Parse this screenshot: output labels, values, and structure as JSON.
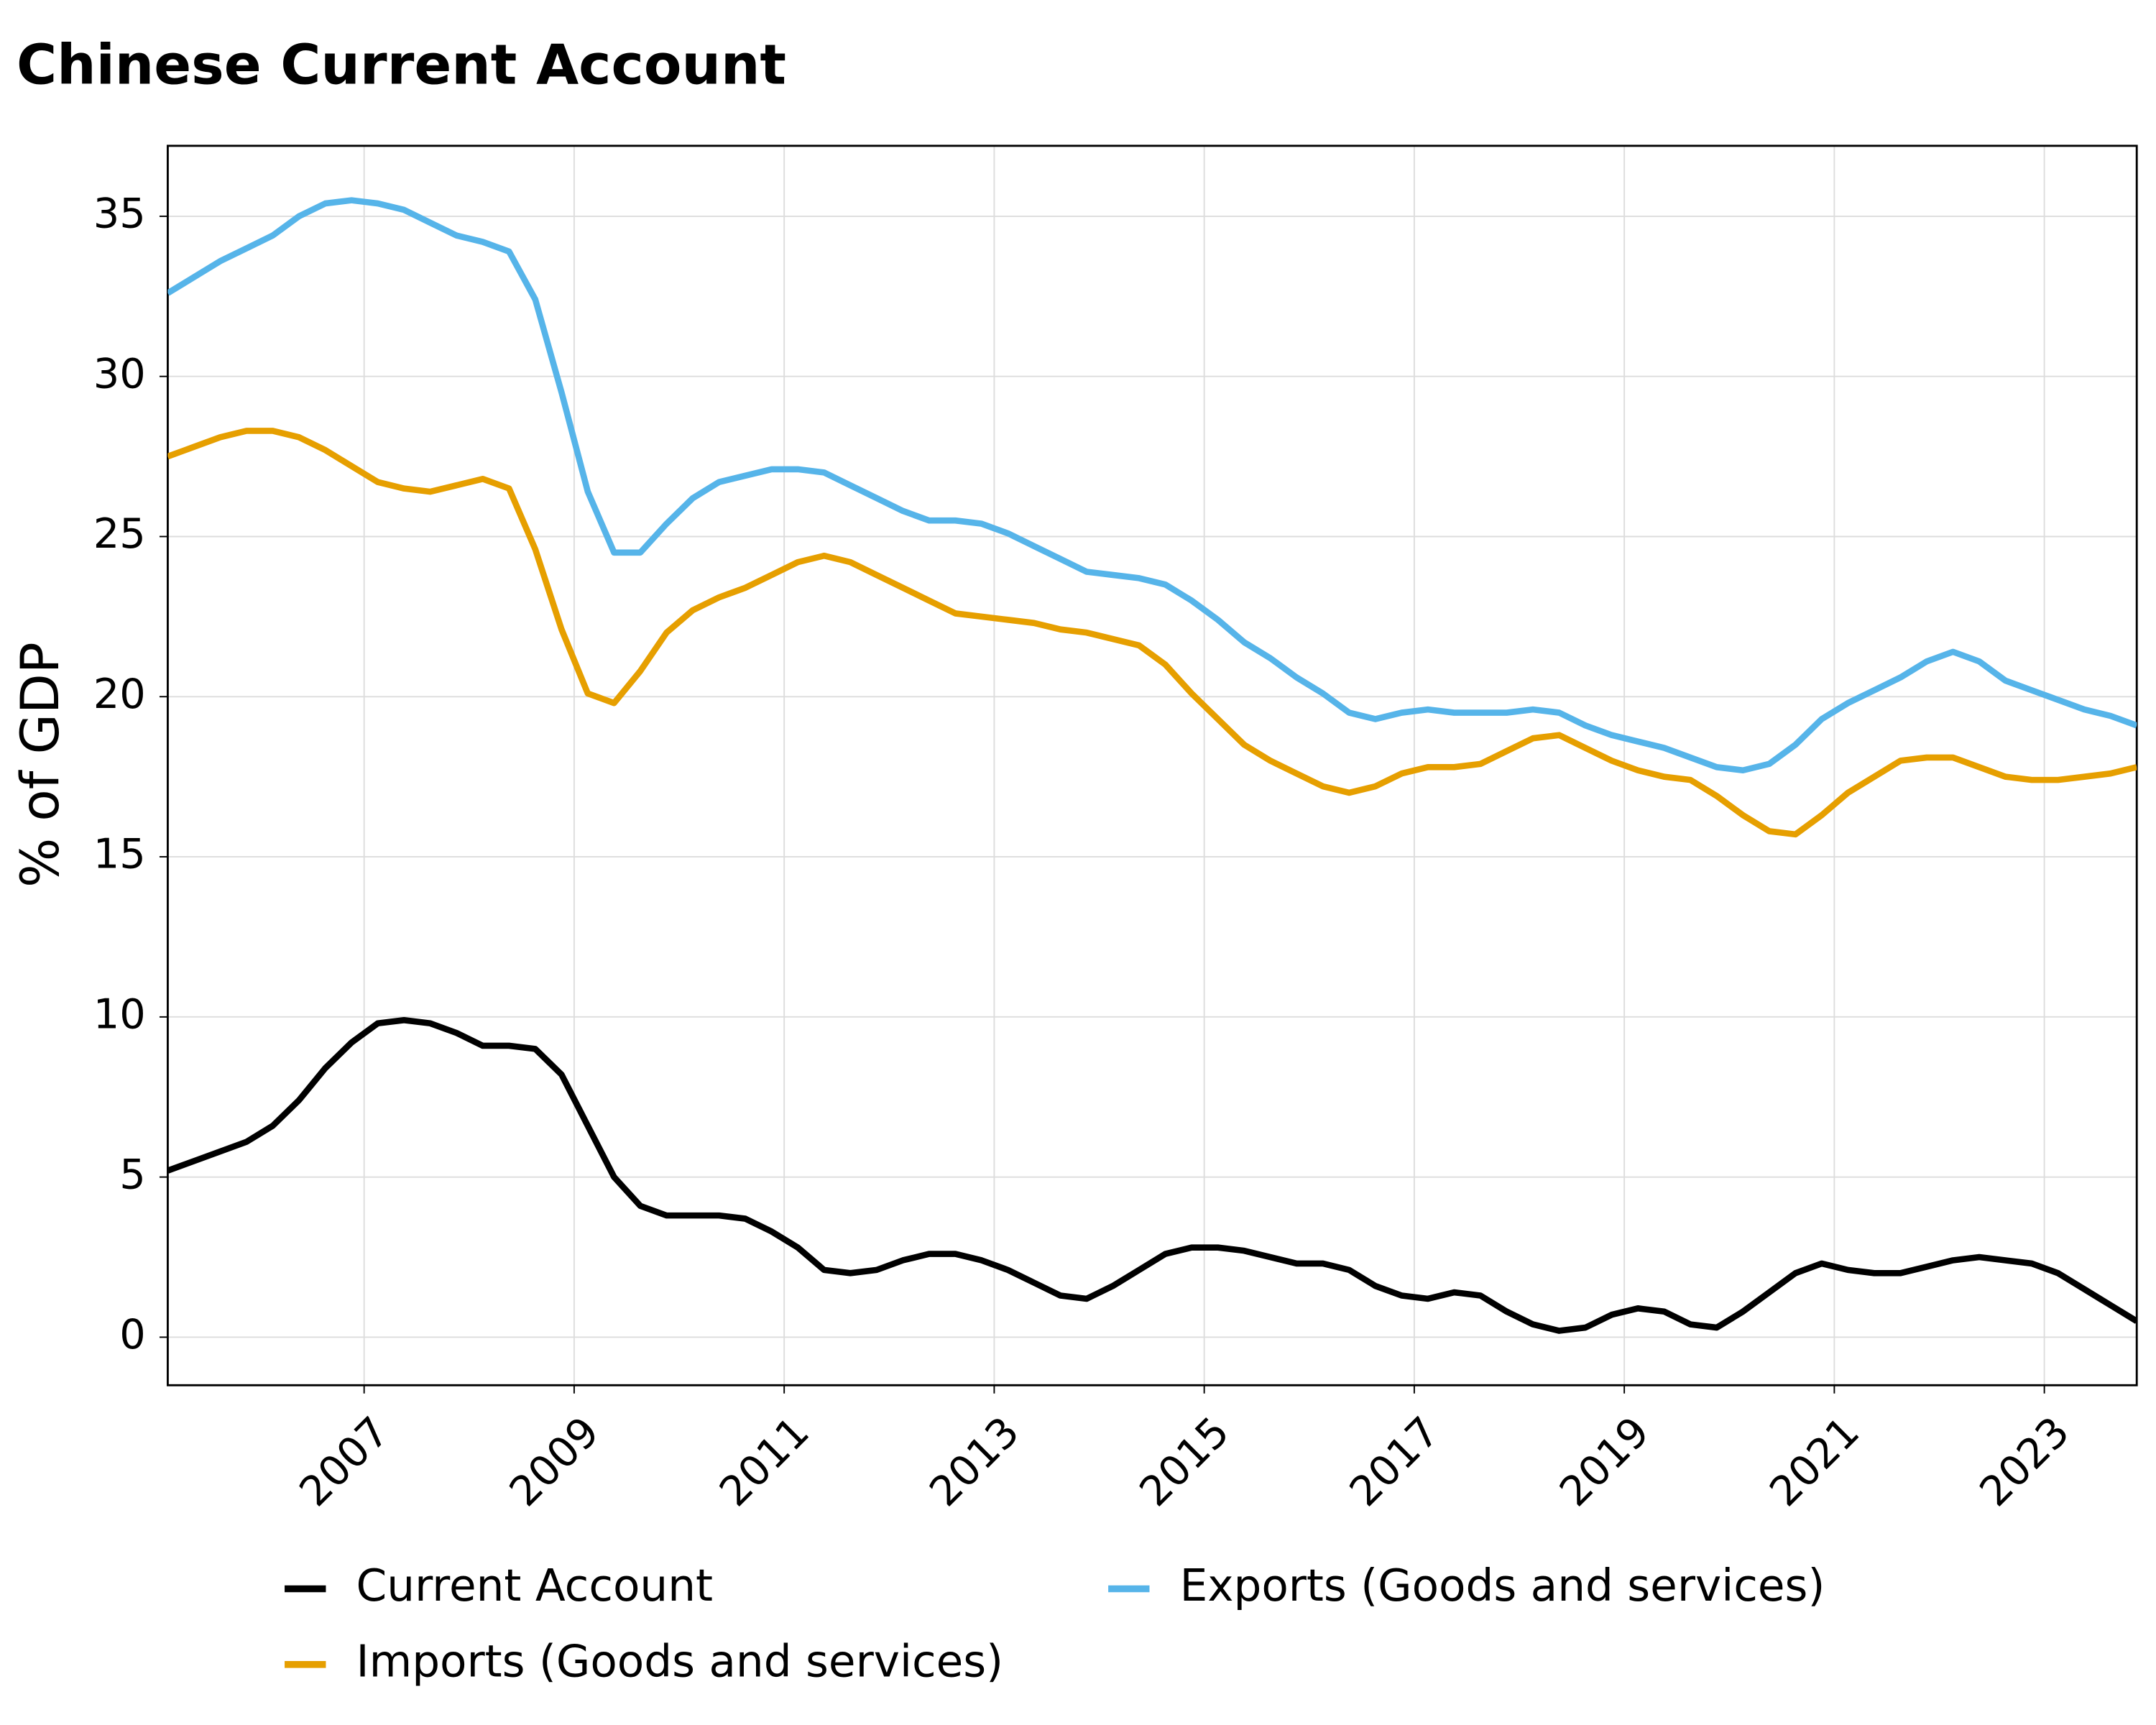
{
  "chart_data": {
    "type": "line",
    "title": "Chinese Current Account",
    "ylabel": "% of GDP",
    "x": [
      2005.13,
      2005.38,
      2005.63,
      2005.88,
      2006.13,
      2006.38,
      2006.63,
      2006.88,
      2007.13,
      2007.38,
      2007.63,
      2007.88,
      2008.13,
      2008.38,
      2008.63,
      2008.88,
      2009.13,
      2009.38,
      2009.63,
      2009.88,
      2010.13,
      2010.38,
      2010.63,
      2010.88,
      2011.13,
      2011.38,
      2011.63,
      2011.88,
      2012.13,
      2012.38,
      2012.63,
      2012.88,
      2013.13,
      2013.38,
      2013.63,
      2013.88,
      2014.13,
      2014.38,
      2014.63,
      2014.88,
      2015.13,
      2015.38,
      2015.63,
      2015.88,
      2016.13,
      2016.38,
      2016.63,
      2016.88,
      2017.13,
      2017.38,
      2017.63,
      2017.88,
      2018.13,
      2018.38,
      2018.63,
      2018.88,
      2019.13,
      2019.38,
      2019.63,
      2019.88,
      2020.13,
      2020.38,
      2020.63,
      2020.88,
      2021.13,
      2021.38,
      2021.63,
      2021.88,
      2022.13,
      2022.38,
      2022.63,
      2022.88,
      2023.13,
      2023.38,
      2023.63,
      2023.88
    ],
    "series": [
      {
        "name": "Current Account",
        "color": "#000000",
        "values": [
          5.2,
          5.5,
          5.8,
          6.1,
          6.6,
          7.4,
          8.4,
          9.2,
          9.8,
          9.9,
          9.8,
          9.5,
          9.1,
          9.1,
          9.0,
          8.2,
          6.6,
          5.0,
          4.1,
          3.8,
          3.8,
          3.8,
          3.7,
          3.3,
          2.8,
          2.1,
          2.0,
          2.1,
          2.4,
          2.6,
          2.6,
          2.4,
          2.1,
          1.7,
          1.3,
          1.2,
          1.6,
          2.1,
          2.6,
          2.8,
          2.8,
          2.7,
          2.5,
          2.3,
          2.3,
          2.1,
          1.6,
          1.3,
          1.2,
          1.4,
          1.3,
          0.8,
          0.4,
          0.2,
          0.3,
          0.7,
          0.9,
          0.8,
          0.4,
          0.3,
          0.8,
          1.4,
          2.0,
          2.3,
          2.1,
          2.0,
          2.0,
          2.2,
          2.4,
          2.5,
          2.4,
          2.3,
          2.0,
          1.5,
          1.0,
          0.5
        ]
      },
      {
        "name": "Imports (Goods and services)",
        "color": "#e69f00",
        "values": [
          27.5,
          27.8,
          28.1,
          28.3,
          28.3,
          28.1,
          27.7,
          27.2,
          26.7,
          26.5,
          26.4,
          26.6,
          26.8,
          26.5,
          24.6,
          22.1,
          20.1,
          19.8,
          20.8,
          22.0,
          22.7,
          23.1,
          23.4,
          23.8,
          24.2,
          24.4,
          24.2,
          23.8,
          23.4,
          23.0,
          22.6,
          22.5,
          22.4,
          22.3,
          22.1,
          22.0,
          21.8,
          21.6,
          21.0,
          20.1,
          19.3,
          18.5,
          18.0,
          17.6,
          17.2,
          17.0,
          17.2,
          17.6,
          17.8,
          17.8,
          17.9,
          18.3,
          18.7,
          18.8,
          18.4,
          18.0,
          17.7,
          17.5,
          17.4,
          16.9,
          16.3,
          15.8,
          15.7,
          16.3,
          17.0,
          17.5,
          18.0,
          18.1,
          18.1,
          17.8,
          17.5,
          17.4,
          17.4,
          17.5,
          17.6,
          17.8
        ]
      },
      {
        "name": "Exports (Goods and services)",
        "color": "#56b4e9",
        "values": [
          32.6,
          33.1,
          33.6,
          34.0,
          34.4,
          35.0,
          35.4,
          35.5,
          35.4,
          35.2,
          34.8,
          34.4,
          34.2,
          33.9,
          32.4,
          29.5,
          26.4,
          24.5,
          24.5,
          25.4,
          26.2,
          26.7,
          26.9,
          27.1,
          27.1,
          27.0,
          26.6,
          26.2,
          25.8,
          25.5,
          25.5,
          25.4,
          25.1,
          24.7,
          24.3,
          23.9,
          23.8,
          23.7,
          23.5,
          23.0,
          22.4,
          21.7,
          21.2,
          20.6,
          20.1,
          19.5,
          19.3,
          19.5,
          19.6,
          19.5,
          19.5,
          19.5,
          19.6,
          19.5,
          19.1,
          18.8,
          18.6,
          18.4,
          18.1,
          17.8,
          17.7,
          17.9,
          18.5,
          19.3,
          19.8,
          20.2,
          20.6,
          21.1,
          21.4,
          21.1,
          20.5,
          20.2,
          19.9,
          19.6,
          19.4,
          19.1
        ]
      }
    ],
    "xlim": [
      2005.13,
      2023.88
    ],
    "xticks": [
      2007,
      2009,
      2011,
      2013,
      2015,
      2017,
      2019,
      2021,
      2023
    ],
    "ylim": [
      -1.5,
      37.2
    ],
    "yticks": [
      0,
      5,
      10,
      15,
      20,
      25,
      30,
      35
    ],
    "grid": true,
    "legend": "bottom"
  }
}
